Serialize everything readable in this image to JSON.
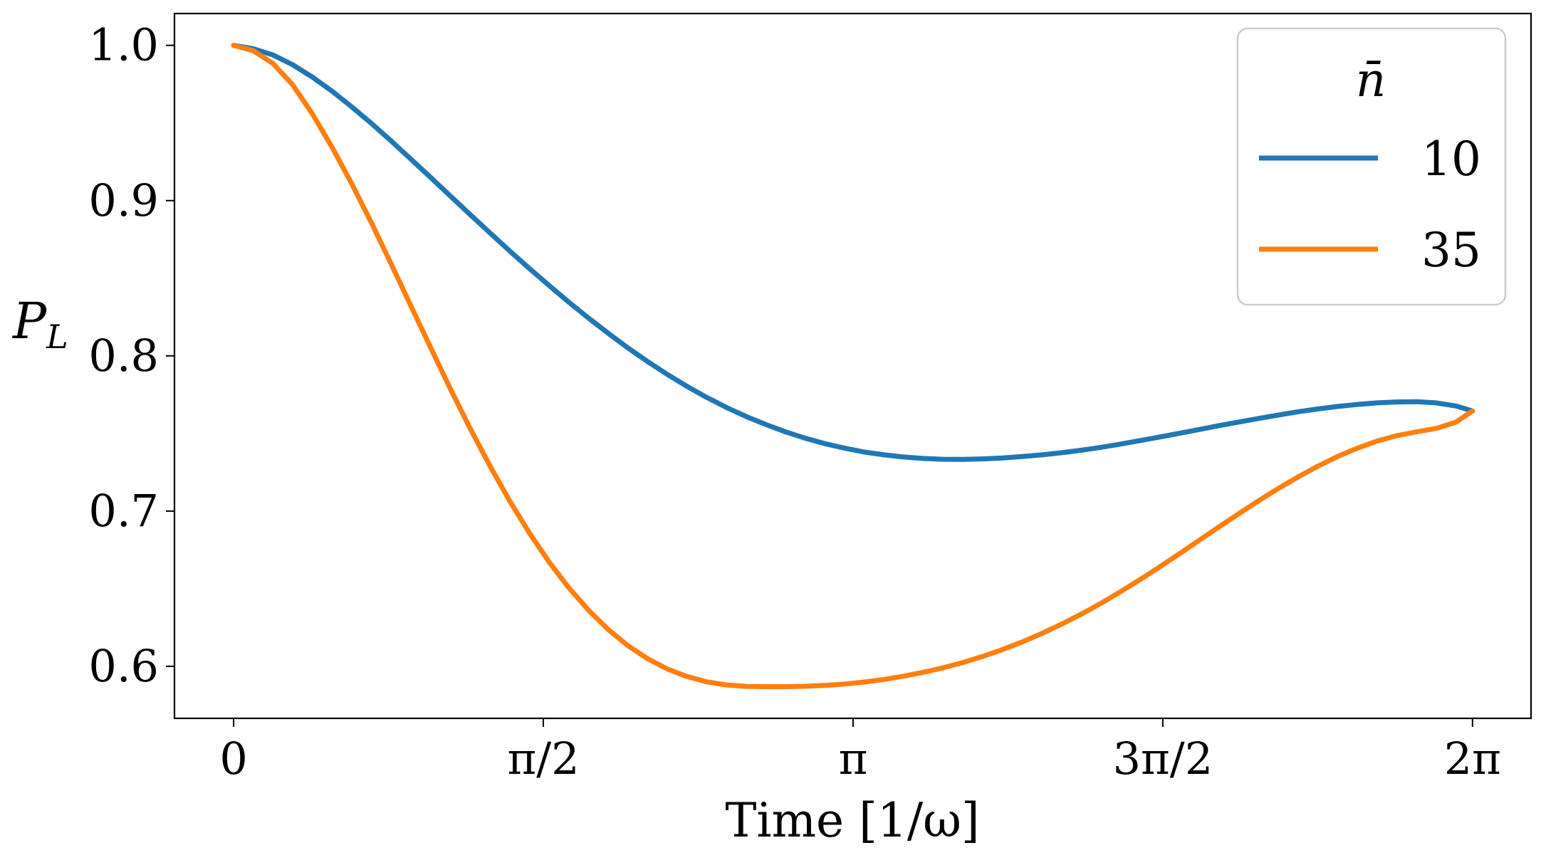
{
  "chart_data": {
    "type": "line",
    "xlabel": "Time [1/ω]",
    "ylabel": {
      "main": "P",
      "sub": "L"
    },
    "xlim": [
      -0.3,
      6.58
    ],
    "ylim": [
      0.5665,
      1.0205
    ],
    "x_ticks": [
      0,
      1.5708,
      3.1416,
      4.7124,
      6.2832
    ],
    "x_tick_labels": [
      "0",
      "π/2",
      "π",
      "3π/2",
      "2π"
    ],
    "y_ticks": [
      0.6,
      0.7,
      0.8,
      0.9,
      1.0
    ],
    "y_tick_labels": [
      "0.6",
      "0.7",
      "0.8",
      "0.9",
      "1.0"
    ],
    "grid": false,
    "legend": {
      "title": "n̄",
      "position": "top-right"
    },
    "series": [
      {
        "name": "10",
        "color": "#1f77b4",
        "x": [
          0,
          0.1,
          0.2,
          0.3,
          0.4,
          0.5,
          0.6,
          0.7,
          0.8,
          0.9,
          1.0,
          1.1,
          1.2,
          1.3,
          1.4,
          1.5,
          1.6,
          1.7,
          1.8,
          1.9,
          2.0,
          2.1,
          2.2,
          2.3,
          2.4,
          2.5,
          2.6,
          2.7,
          2.8,
          2.9,
          3.0,
          3.1,
          3.2,
          3.3,
          3.4,
          3.5,
          3.6,
          3.7,
          3.8,
          3.9,
          4.0,
          4.1,
          4.2,
          4.3,
          4.4,
          4.5,
          4.6,
          4.7,
          4.8,
          4.9,
          5.0,
          5.1,
          5.2,
          5.3,
          5.4,
          5.5,
          5.6,
          5.7,
          5.8,
          5.9,
          6.0,
          6.1,
          6.2,
          6.2832
        ],
        "y": [
          1.0,
          0.9978,
          0.9938,
          0.9875,
          0.9795,
          0.9704,
          0.9603,
          0.9496,
          0.9383,
          0.9266,
          0.9148,
          0.9029,
          0.891,
          0.8792,
          0.8676,
          0.8563,
          0.8453,
          0.8346,
          0.8243,
          0.8145,
          0.8051,
          0.7963,
          0.788,
          0.7803,
          0.7732,
          0.7667,
          0.7609,
          0.7557,
          0.751,
          0.7469,
          0.7434,
          0.7405,
          0.738,
          0.7362,
          0.7348,
          0.7339,
          0.7334,
          0.7333,
          0.7336,
          0.7342,
          0.7351,
          0.7362,
          0.7376,
          0.7392,
          0.7411,
          0.7432,
          0.7455,
          0.7478,
          0.7502,
          0.7526,
          0.7551,
          0.7574,
          0.7597,
          0.7619,
          0.764,
          0.7658,
          0.7674,
          0.7687,
          0.7697,
          0.7703,
          0.7705,
          0.7697,
          0.7677,
          0.7645
        ]
      },
      {
        "name": "35",
        "color": "#ff7f0e",
        "x": [
          0,
          0.1,
          0.2,
          0.3,
          0.4,
          0.5,
          0.6,
          0.7,
          0.8,
          0.9,
          1.0,
          1.1,
          1.2,
          1.3,
          1.4,
          1.5,
          1.6,
          1.7,
          1.8,
          1.9,
          2.0,
          2.1,
          2.2,
          2.3,
          2.4,
          2.5,
          2.6,
          2.7,
          2.8,
          2.9,
          3.0,
          3.1,
          3.2,
          3.3,
          3.4,
          3.5,
          3.6,
          3.7,
          3.8,
          3.9,
          4.0,
          4.1,
          4.2,
          4.3,
          4.4,
          4.5,
          4.6,
          4.7,
          4.8,
          4.9,
          5.0,
          5.1,
          5.2,
          5.3,
          5.4,
          5.5,
          5.6,
          5.7,
          5.8,
          5.9,
          6.0,
          6.1,
          6.2,
          6.2832
        ],
        "y": [
          1.0,
          0.9965,
          0.9883,
          0.9745,
          0.9558,
          0.9342,
          0.9106,
          0.8854,
          0.8589,
          0.8319,
          0.805,
          0.7786,
          0.7532,
          0.7291,
          0.7066,
          0.6859,
          0.6672,
          0.6506,
          0.6361,
          0.6237,
          0.6133,
          0.6049,
          0.5983,
          0.5934,
          0.59,
          0.588,
          0.5871,
          0.5869,
          0.5869,
          0.5872,
          0.5877,
          0.5886,
          0.5899,
          0.5916,
          0.5937,
          0.5962,
          0.5991,
          0.6025,
          0.6064,
          0.6108,
          0.6157,
          0.6212,
          0.6272,
          0.6337,
          0.6407,
          0.6482,
          0.6561,
          0.6643,
          0.6728,
          0.6814,
          0.69,
          0.6985,
          0.7068,
          0.7147,
          0.7221,
          0.729,
          0.7352,
          0.7406,
          0.7451,
          0.7486,
          0.7511,
          0.7533,
          0.7573,
          0.7645
        ]
      }
    ]
  }
}
